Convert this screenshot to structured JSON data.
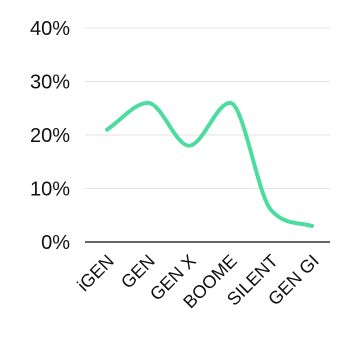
{
  "chart_data": {
    "type": "line",
    "categories": [
      "iGEN",
      "GEN",
      "GEN X",
      "BOOME",
      "SILENT",
      "GEN GI"
    ],
    "series": [
      {
        "values": [
          21,
          26,
          18,
          26,
          6,
          3
        ]
      }
    ],
    "y_tick_labels": [
      "0%",
      "10%",
      "20%",
      "30%",
      "40%"
    ],
    "y_ticks": [
      0,
      10,
      20,
      30,
      40
    ],
    "ylim": [
      0,
      40
    ],
    "grid": true,
    "smooth": true,
    "line_color": "#4ddca0",
    "grid_color": "#e3e3e3",
    "axis_color": "#333333",
    "legend": "none"
  }
}
